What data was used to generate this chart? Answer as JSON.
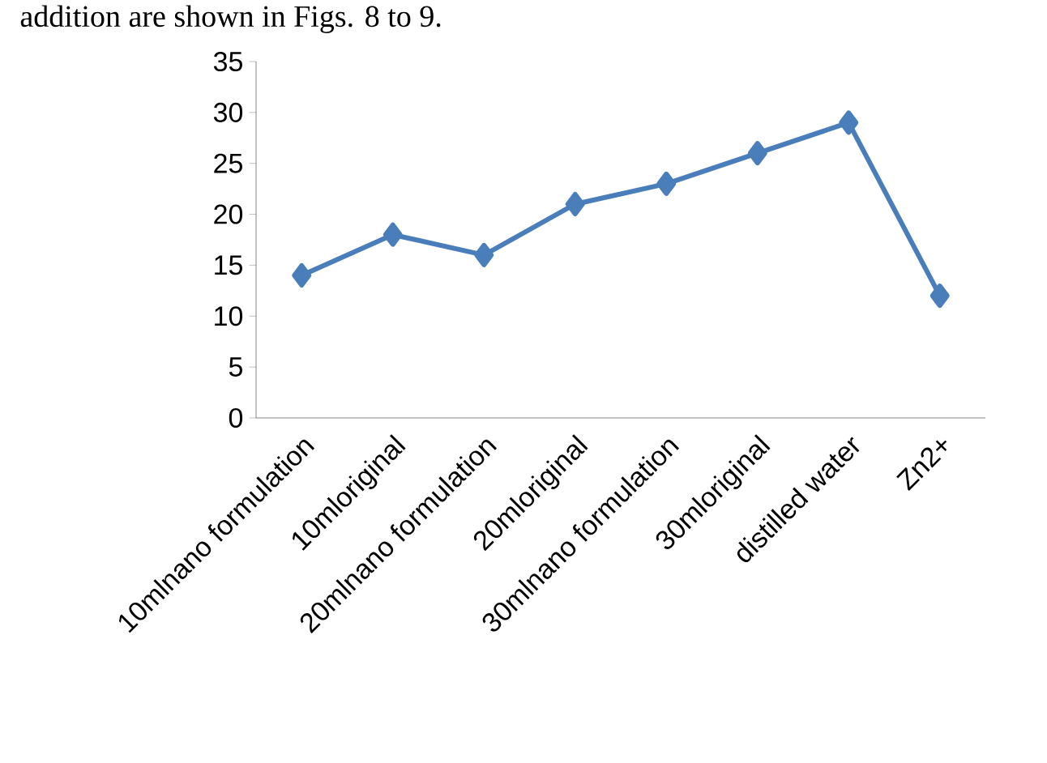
{
  "chart_data": {
    "type": "line",
    "categories": [
      "10mlnano formulation",
      "10mloriginal",
      "20mlnano formulation",
      "20mloriginal",
      "30mlnano formulation",
      "30mloriginal",
      "distilled water",
      "Zn2+"
    ],
    "values": [
      14,
      18,
      16,
      21,
      23,
      26,
      29,
      12
    ],
    "color": "#4a7ebb",
    "marker": "diamond",
    "line_style": "solid",
    "ylim": [
      0,
      35
    ],
    "yticks": [
      0,
      5,
      10,
      15,
      20,
      25,
      30,
      35
    ],
    "grid": false,
    "annotations": [
      "addition are shown in Figs. 8 to 9."
    ]
  }
}
